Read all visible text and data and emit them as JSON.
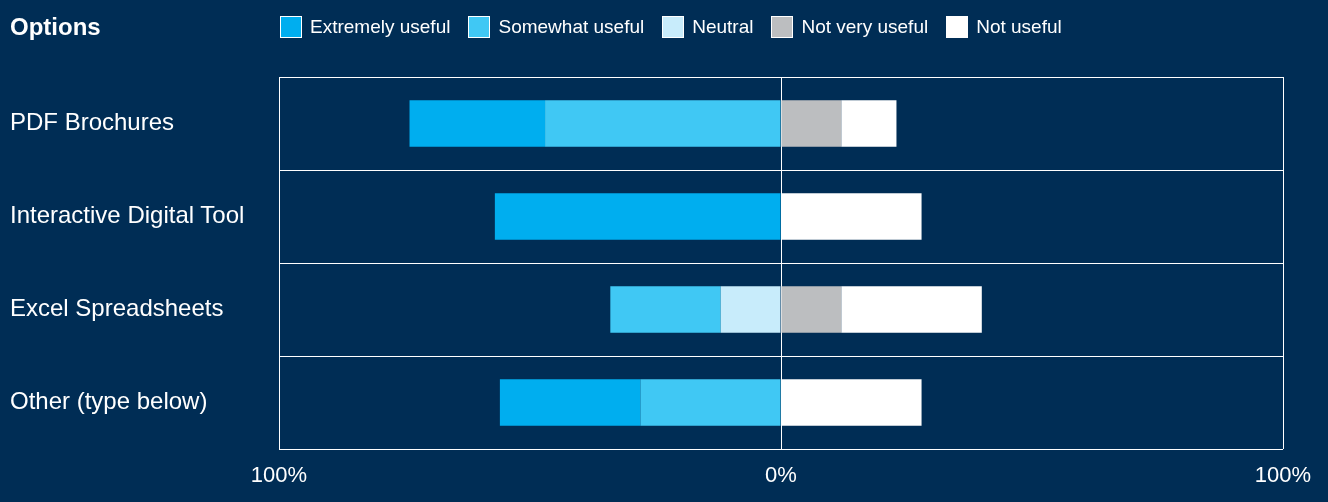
{
  "chart_data": {
    "type": "bar",
    "title": "Options",
    "orientation": "horizontal",
    "stacked": true,
    "legend": "top",
    "grid": true,
    "categories": [
      "PDF Brochures",
      "Interactive Digital Tool",
      "Excel Spreadsheets",
      "Other (type below)"
    ],
    "series": [
      {
        "name": "Extremely useful",
        "color": "#00aeef",
        "values": [
          -27,
          -57,
          null,
          -28
        ]
      },
      {
        "name": "Somewhat useful",
        "color": "#40c8f4",
        "values": [
          -47,
          null,
          -22,
          -28
        ]
      },
      {
        "name": "Neutral",
        "color": "#c8ecfb",
        "values": [
          null,
          null,
          -12,
          null
        ]
      },
      {
        "name": "Not very useful",
        "color": "#bcbec0",
        "values": [
          12,
          null,
          12,
          null
        ]
      },
      {
        "name": "Not useful",
        "color": "#ffffff",
        "values": [
          11,
          28,
          28,
          28
        ]
      }
    ],
    "xlim": [
      -100,
      100
    ],
    "xticks": [
      {
        "value": -100,
        "label": "100%"
      },
      {
        "value": 0,
        "label": "0%"
      },
      {
        "value": 100,
        "label": "100%"
      }
    ]
  }
}
